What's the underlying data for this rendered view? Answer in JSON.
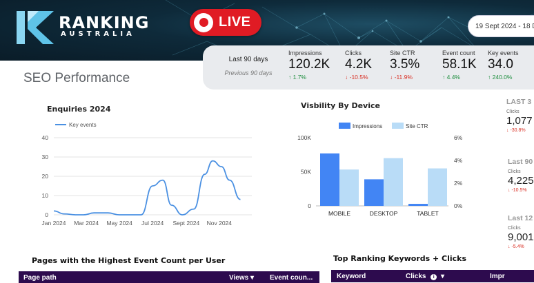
{
  "brand": {
    "name": "RANKING",
    "sub": "AUSTRALIA"
  },
  "live_label": "LIVE",
  "date_range": "19 Sept 2024 - 18 D",
  "page_title": "SEO Performance",
  "kpis": {
    "period_current": "Last 90 days",
    "period_previous": "Previous 90 days",
    "items": [
      {
        "label": "Impressions",
        "value": "120.2K",
        "change": "↑ 1.7%",
        "dir": "up"
      },
      {
        "label": "Clicks",
        "value": "4.2K",
        "change": "↓ -10.5%",
        "dir": "down"
      },
      {
        "label": "Site CTR",
        "value": "3.5%",
        "change": "↓ -11.9%",
        "dir": "down"
      },
      {
        "label": "Event count",
        "value": "58.1K",
        "change": "↑ 4.4%",
        "dir": "up"
      },
      {
        "label": "Key events",
        "value": "34.0",
        "change": "↑ 240.0%",
        "dir": "up"
      }
    ]
  },
  "chart_data": [
    {
      "type": "line",
      "title": "Enquiries 2024",
      "series": [
        {
          "name": "Key events",
          "x": [
            "2024-01-01",
            "2024-01-20",
            "2024-02-10",
            "2024-02-25",
            "2024-03-15",
            "2024-04-10",
            "2024-05-01",
            "2024-05-20",
            "2024-06-10",
            "2024-07-01",
            "2024-07-20",
            "2024-08-05",
            "2024-08-25",
            "2024-09-15",
            "2024-10-05",
            "2024-10-20",
            "2024-11-05",
            "2024-11-20",
            "2024-12-10"
          ],
          "values": [
            2,
            0.5,
            0,
            0,
            1,
            1,
            0,
            0,
            0,
            15,
            18,
            5,
            0,
            3,
            21,
            28,
            25,
            18,
            8
          ]
        }
      ],
      "x_tick_labels": [
        "Jan 2024",
        "Mar 2024",
        "May 2024",
        "Jul 2024",
        "Sept 2024",
        "Nov 2024"
      ],
      "y_tick_labels": [
        "0",
        "10",
        "20",
        "30",
        "40"
      ],
      "ylim": [
        0,
        40
      ],
      "grid": true,
      "legend": "top-left",
      "color": "#4a90e2"
    },
    {
      "type": "bar",
      "title": "Visbility By Device",
      "categories": [
        "MOBILE",
        "DESKTOP",
        "TABLET"
      ],
      "series": [
        {
          "name": "Impressions",
          "values": [
            77000,
            39000,
            3000
          ],
          "color": "#4285f4",
          "axis": "left"
        },
        {
          "name": "Site CTR",
          "values": [
            3.2,
            4.2,
            3.3
          ],
          "color": "#b9dcf7",
          "axis": "right"
        }
      ],
      "y_left_ticks": [
        "0",
        "50K",
        "100K"
      ],
      "y_left_lim": [
        0,
        100000
      ],
      "y_right_ticks": [
        "0%",
        "2%",
        "4%",
        "6%"
      ],
      "y_right_lim": [
        0,
        6
      ],
      "legend": "top"
    }
  ],
  "right_panel": [
    {
      "head": "LAST 3",
      "sub": "Clicks",
      "value": "1,077",
      "change": "↓ -30.8%"
    },
    {
      "head": "Last 90",
      "sub": "Clicks",
      "value": "4,225",
      "change": "↓ -10.5%"
    },
    {
      "head": "Last 12",
      "sub": "Clicks",
      "value": "9,001",
      "change": "↓ -5.4%"
    }
  ],
  "tables": {
    "pages": {
      "title": "Pages with the Highest Event Count per User",
      "cols": [
        "Page path",
        "Views ▾",
        "Event coun..."
      ]
    },
    "keywords": {
      "title": "Top Ranking Keywords + Clicks",
      "cols": [
        "Keyword",
        "Clicks",
        "Impr"
      ]
    }
  }
}
